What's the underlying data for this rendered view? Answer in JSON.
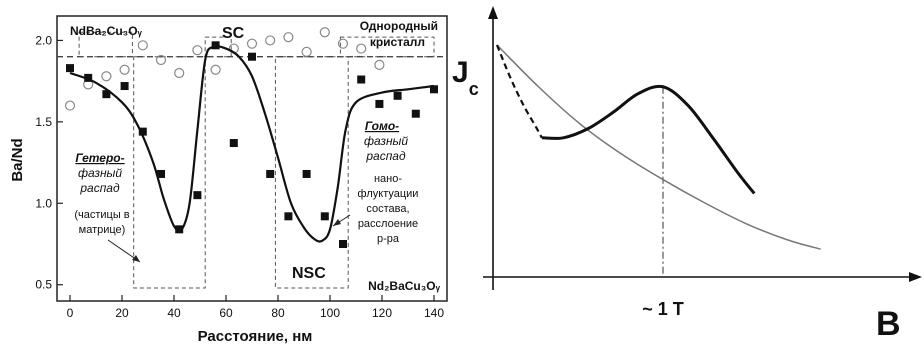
{
  "chart_data": [
    {
      "type": "scatter",
      "xlabel": "Расстояние, нм",
      "ylabel": "Ba/Nd",
      "xlim": [
        -5,
        145
      ],
      "ylim": [
        0.4,
        2.15
      ],
      "x_ticks": [
        0,
        20,
        40,
        60,
        80,
        100,
        120,
        140
      ],
      "y_ticks": [
        0.5,
        1.0,
        1.5,
        2.0
      ],
      "x_tick_labels": [
        "0",
        "20",
        "40",
        "60",
        "80",
        "100",
        "120",
        "140"
      ],
      "y_tick_labels": [
        "0.5",
        "1.0",
        "1.5",
        "2.0"
      ],
      "reference_line_y": 1.9,
      "series": [
        {
          "marker": "square-filled",
          "x": [
            0,
            7,
            14,
            21,
            28,
            35,
            42,
            49,
            56,
            63,
            70,
            77,
            84,
            91,
            98,
            105,
            112,
            119,
            126,
            133,
            140
          ],
          "y": [
            1.83,
            1.77,
            1.67,
            1.72,
            1.44,
            1.18,
            0.84,
            1.05,
            1.97,
            1.37,
            1.9,
            1.18,
            0.92,
            1.18,
            0.92,
            0.75,
            1.76,
            1.61,
            1.66,
            1.55,
            1.7
          ]
        },
        {
          "marker": "circle-open",
          "x": [
            0,
            7,
            14,
            21,
            28,
            35,
            42,
            49,
            56,
            63,
            70,
            77,
            84,
            91,
            98,
            105,
            112,
            119
          ],
          "y": [
            1.6,
            1.73,
            1.78,
            1.82,
            1.97,
            1.88,
            1.8,
            1.94,
            1.82,
            1.95,
            1.98,
            2.0,
            2.02,
            1.93,
            2.05,
            1.98,
            1.95,
            1.85
          ]
        }
      ],
      "fit_curve": {
        "x": [
          0,
          10,
          20,
          26,
          32,
          36,
          40,
          43,
          46,
          49,
          52,
          55,
          60,
          65,
          70,
          75,
          80,
          85,
          90,
          94,
          97,
          100,
          103,
          106,
          110,
          120,
          130,
          140
        ],
        "y": [
          1.8,
          1.74,
          1.62,
          1.48,
          1.25,
          1.03,
          0.86,
          0.84,
          1.0,
          1.45,
          1.88,
          1.96,
          1.95,
          1.9,
          1.78,
          1.55,
          1.28,
          1.0,
          0.85,
          0.78,
          0.77,
          0.84,
          1.1,
          1.45,
          1.62,
          1.68,
          1.7,
          1.72
        ]
      },
      "annotations": {
        "ndba2": "NdBa₂Cu₃Oᵧ",
        "sc": "SC",
        "crystal_1": "Однородный",
        "crystal_2": "кристалл",
        "hetero_1": "Гетеро-",
        "hetero_2": "фазный",
        "hetero_3": "распад",
        "hetero_4": "(частицы в",
        "hetero_5": "матрице)",
        "homo_1": "Гомо-",
        "homo_2": "фазный",
        "homo_3": "распад",
        "homo_4": "нано-",
        "homo_5": "флуктуации",
        "homo_6": "состава,",
        "homo_7": "расслоение",
        "homo_8": "р-ра",
        "nsc": "NSC",
        "nd2ba": "Nd₂BaCu₃Oᵧ"
      }
    },
    {
      "type": "line",
      "ylabel": "J",
      "ylabel_sub": "c",
      "xlabel": "B",
      "x_tick_labels": [
        "~ 1 T"
      ],
      "peak_x": 1.0,
      "series": [
        {
          "style": "thin-gray",
          "x": [
            0,
            0.25,
            0.5,
            0.75,
            1.0,
            1.25,
            1.5,
            1.75,
            1.95
          ],
          "y": [
            1.0,
            0.82,
            0.66,
            0.53,
            0.42,
            0.32,
            0.23,
            0.16,
            0.12
          ]
        },
        {
          "style": "thick-black",
          "x": [
            0.27,
            0.4,
            0.55,
            0.7,
            0.85,
            1.0,
            1.15,
            1.3,
            1.45,
            1.55
          ],
          "y": [
            0.6,
            0.6,
            0.64,
            0.71,
            0.79,
            0.82,
            0.74,
            0.6,
            0.45,
            0.36
          ]
        },
        {
          "style": "dashed-black",
          "x": [
            0,
            0.08,
            0.16,
            0.24,
            0.27
          ],
          "y": [
            1.0,
            0.86,
            0.74,
            0.64,
            0.6
          ]
        }
      ]
    }
  ]
}
